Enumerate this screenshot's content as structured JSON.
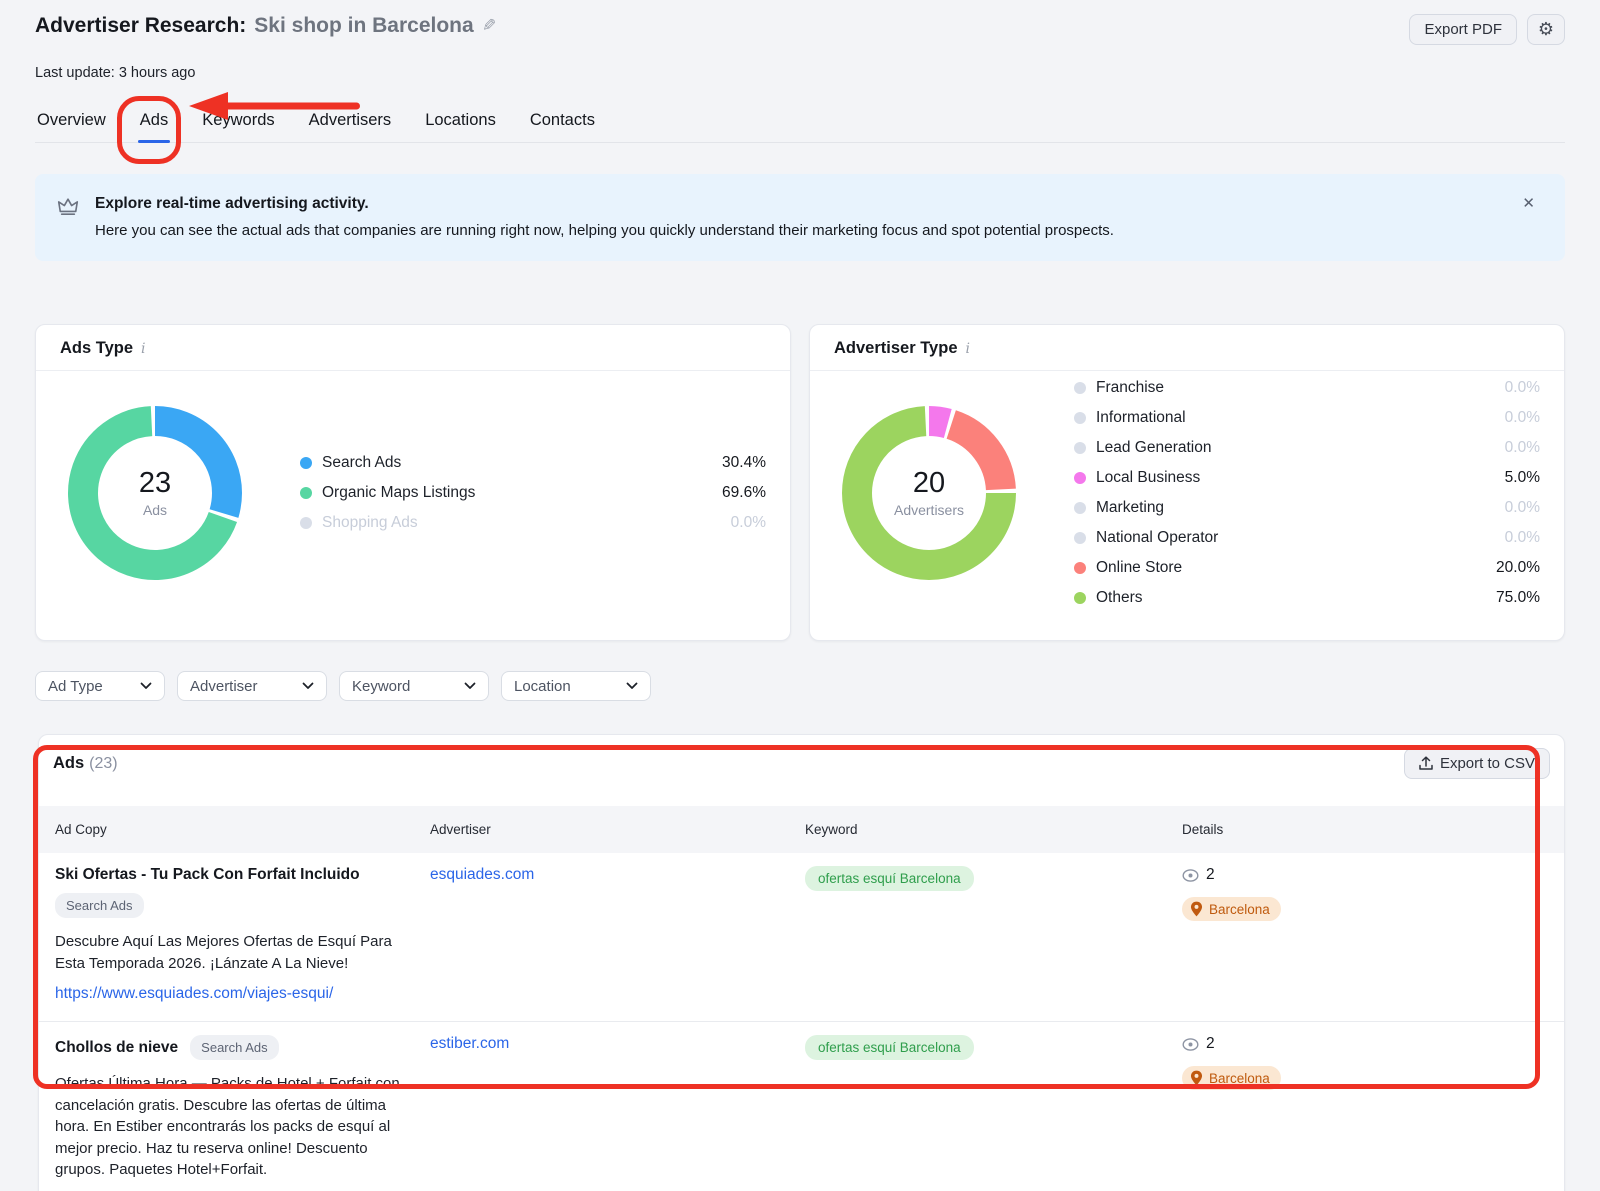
{
  "header": {
    "title": "Advertiser Research:",
    "subtitle": "Ski shop in Barcelona",
    "last_update": "Last update: 3 hours ago",
    "export_pdf": "Export PDF"
  },
  "tabs": [
    {
      "label": "Overview",
      "active": false
    },
    {
      "label": "Ads",
      "active": true
    },
    {
      "label": "Keywords",
      "active": false
    },
    {
      "label": "Advertisers",
      "active": false
    },
    {
      "label": "Locations",
      "active": false
    },
    {
      "label": "Contacts",
      "active": false
    }
  ],
  "banner": {
    "title": "Explore real-time advertising activity.",
    "body": "Here you can see the actual ads that companies are running right now, helping you quickly understand their marketing focus and spot potential prospects."
  },
  "chart_data": [
    {
      "type": "donut",
      "title": "Ads Type",
      "center_value": "23",
      "center_label": "Ads",
      "dim_zero_labels": true,
      "segments": [
        {
          "label": "Search Ads",
          "value": 30.4,
          "color": "#3aa7f4"
        },
        {
          "label": "Organic Maps Listings",
          "value": 69.6,
          "color": "#57d6a2"
        },
        {
          "label": "Shopping Ads",
          "value": 0.0,
          "color": "#d9dee8"
        }
      ]
    },
    {
      "type": "donut",
      "title": "Advertiser Type",
      "center_value": "20",
      "center_label": "Advertisers",
      "dim_zero_labels": false,
      "segments": [
        {
          "label": "Franchise",
          "value": 0.0,
          "color": "#d9dee8"
        },
        {
          "label": "Informational",
          "value": 0.0,
          "color": "#d9dee8"
        },
        {
          "label": "Lead Generation",
          "value": 0.0,
          "color": "#d9dee8"
        },
        {
          "label": "Local Business",
          "value": 5.0,
          "color": "#f478ec"
        },
        {
          "label": "Marketing",
          "value": 0.0,
          "color": "#d9dee8"
        },
        {
          "label": "National Operator",
          "value": 0.0,
          "color": "#d9dee8"
        },
        {
          "label": "Online Store",
          "value": 20.0,
          "color": "#fb817b"
        },
        {
          "label": "Others",
          "value": 75.0,
          "color": "#9cd45f"
        }
      ]
    }
  ],
  "filters": [
    "Ad Type",
    "Advertiser",
    "Keyword",
    "Location"
  ],
  "table": {
    "title": "Ads",
    "count": "(23)",
    "export_csv": "Export to CSV",
    "columns": [
      "Ad Copy",
      "Advertiser",
      "Keyword",
      "Details"
    ],
    "rows": [
      {
        "title": "Ski Ofertas - Tu Pack Con Forfait Incluido",
        "badge": "Search Ads",
        "badge_inline": false,
        "description": "Descubre Aquí Las Mejores Ofertas de Esquí Para Esta Temporada 2026. ¡Lánzate A La Nieve!",
        "url": "https://www.esquiades.com/viajes-esqui/",
        "advertiser": "esquiades.com",
        "keyword": "ofertas esquí Barcelona",
        "views": "2",
        "location": "Barcelona"
      },
      {
        "title": "Chollos de nieve",
        "badge": "Search Ads",
        "badge_inline": true,
        "description": "Ofertas Última Hora — Packs de Hotel + Forfait con cancelación gratis. Descubre las ofertas de última hora. En Estiber encontrarás los packs de esquí al mejor precio. Haz tu reserva online! Descuento grupos. Paquetes Hotel+Forfait.",
        "url": "",
        "advertiser": "estiber.com",
        "keyword": "ofertas esquí Barcelona",
        "views": "2",
        "location": "Barcelona"
      }
    ]
  }
}
